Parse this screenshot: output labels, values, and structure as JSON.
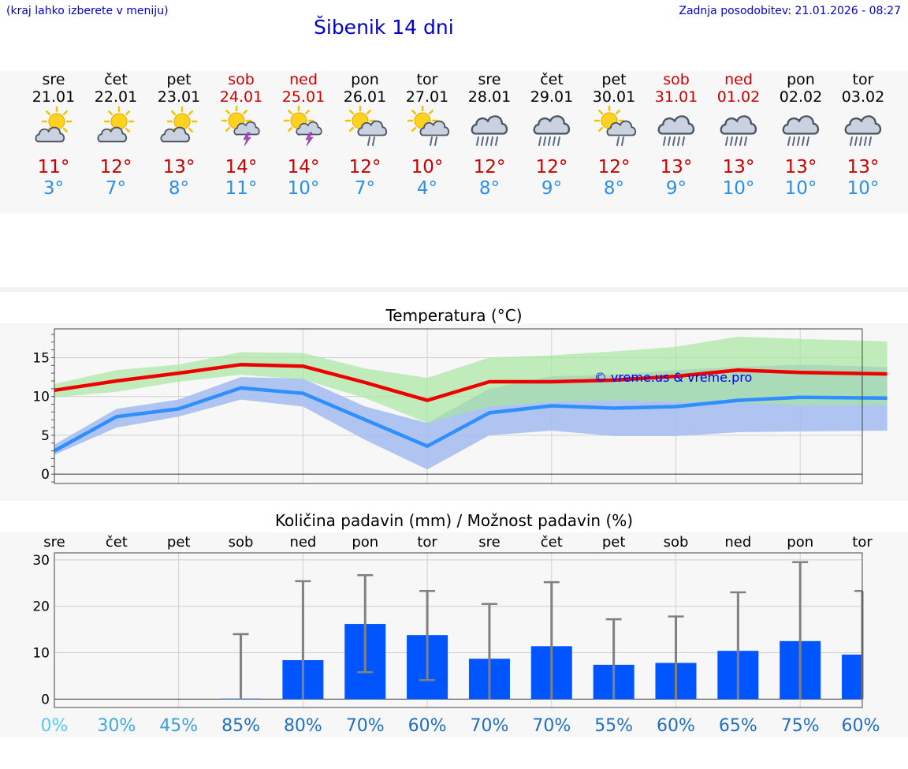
{
  "header": {
    "note": "(kraj lahko izberete v meniju)",
    "title": "Šibenik 14 dni",
    "updated": "Zadnja posodobitev: 21.01.2026 - 08:27"
  },
  "days": [
    {
      "name": "sre",
      "date": "21.01",
      "weekend": false,
      "icon": "partly-cloudy-sun-icon",
      "tmax": "11°",
      "tmin": "3°"
    },
    {
      "name": "čet",
      "date": "22.01",
      "weekend": false,
      "icon": "partly-cloudy-sun-icon",
      "tmax": "12°",
      "tmin": "7°"
    },
    {
      "name": "pet",
      "date": "23.01",
      "weekend": false,
      "icon": "partly-cloudy-sun-icon",
      "tmax": "13°",
      "tmin": "8°"
    },
    {
      "name": "sob",
      "date": "24.01",
      "weekend": true,
      "icon": "sun-thunderstorm-icon",
      "tmax": "14°",
      "tmin": "11°"
    },
    {
      "name": "ned",
      "date": "25.01",
      "weekend": true,
      "icon": "sun-thunderstorm-icon",
      "tmax": "14°",
      "tmin": "10°"
    },
    {
      "name": "pon",
      "date": "26.01",
      "weekend": false,
      "icon": "sun-rain-icon",
      "tmax": "12°",
      "tmin": "7°"
    },
    {
      "name": "tor",
      "date": "27.01",
      "weekend": false,
      "icon": "sun-rain-icon",
      "tmax": "10°",
      "tmin": "4°"
    },
    {
      "name": "sre",
      "date": "28.01",
      "weekend": false,
      "icon": "cloud-rain-icon",
      "tmax": "12°",
      "tmin": "8°"
    },
    {
      "name": "čet",
      "date": "29.01",
      "weekend": false,
      "icon": "cloud-rain-icon",
      "tmax": "12°",
      "tmin": "9°"
    },
    {
      "name": "pet",
      "date": "30.01",
      "weekend": false,
      "icon": "sun-rain-icon",
      "tmax": "12°",
      "tmin": "8°"
    },
    {
      "name": "sob",
      "date": "31.01",
      "weekend": true,
      "icon": "cloud-rain-icon",
      "tmax": "13°",
      "tmin": "9°"
    },
    {
      "name": "ned",
      "date": "01.02",
      "weekend": true,
      "icon": "cloud-rain-icon",
      "tmax": "13°",
      "tmin": "10°"
    },
    {
      "name": "pon",
      "date": "02.02",
      "weekend": false,
      "icon": "cloud-rain-icon",
      "tmax": "13°",
      "tmin": "10°"
    },
    {
      "name": "tor",
      "date": "03.02",
      "weekend": false,
      "icon": "cloud-rain-icon",
      "tmax": "13°",
      "tmin": "10°"
    }
  ],
  "colors": {
    "max_line": "#ee0000",
    "min_line": "#2f8fff",
    "max_band": "#a8e6a0",
    "min_band": "#a7bef0",
    "bar": "#0055ff",
    "whisker": "#808080",
    "weekend": "#cc0000",
    "link": "#0000cc"
  },
  "chart_data": [
    {
      "type": "line",
      "title": "Temperatura (°C)",
      "watermark": "© vreme.us & vreme.pro",
      "yticks": [
        0,
        5,
        10,
        15
      ],
      "ylim": [
        -1.2,
        18.7
      ],
      "grid": true,
      "categories": [
        "21.01",
        "22.01",
        "23.01",
        "24.01",
        "25.01",
        "26.01",
        "27.01",
        "28.01",
        "29.01",
        "30.01",
        "31.01",
        "01.02",
        "02.02",
        "03.02"
      ],
      "series": [
        {
          "name": "max",
          "x": [
            0,
            1,
            2,
            3,
            4,
            5,
            6,
            7,
            8,
            9,
            10,
            11,
            12,
            13.4
          ],
          "values": [
            10.8,
            12.0,
            13.0,
            14.1,
            13.9,
            11.8,
            9.5,
            11.9,
            11.9,
            12.1,
            12.6,
            13.4,
            13.1,
            12.9
          ]
        },
        {
          "name": "min",
          "x": [
            0,
            1,
            2,
            3,
            4,
            5,
            6,
            7,
            8,
            9,
            10,
            11,
            12,
            13.4
          ],
          "values": [
            3.0,
            7.4,
            8.4,
            11.1,
            10.4,
            7.0,
            3.6,
            7.9,
            8.8,
            8.5,
            8.7,
            9.5,
            9.9,
            9.8
          ]
        }
      ],
      "max_band": {
        "x": [
          0,
          1,
          2,
          3,
          4,
          5,
          6,
          7,
          8,
          9,
          10,
          11,
          12,
          13.4
        ],
        "upper": [
          11.6,
          13.4,
          14.1,
          15.7,
          15.6,
          13.6,
          12.4,
          15.0,
          15.3,
          15.8,
          16.4,
          17.7,
          17.4,
          17.1
        ],
        "lower": [
          9.9,
          10.6,
          11.9,
          12.8,
          12.2,
          9.8,
          6.6,
          8.7,
          9.3,
          9.5,
          9.3,
          9.2,
          8.9,
          8.9
        ]
      },
      "min_band": {
        "x": [
          0,
          1,
          2,
          3,
          4,
          5,
          6,
          7,
          8,
          9,
          10,
          11,
          12,
          13.4
        ],
        "upper": [
          3.8,
          8.4,
          9.6,
          12.5,
          12.3,
          8.7,
          6.6,
          11.0,
          12.6,
          12.8,
          13.4,
          13.8,
          14.1,
          13.8
        ],
        "lower": [
          2.5,
          6.0,
          7.4,
          9.6,
          8.7,
          4.4,
          0.6,
          5.0,
          5.6,
          4.9,
          4.9,
          5.4,
          5.5,
          5.6
        ]
      }
    },
    {
      "type": "bar",
      "title": "Količina padavin (mm) / Možnost padavin (%)",
      "yticks": [
        0,
        10,
        20,
        30
      ],
      "ylim": [
        -1.8,
        31.5
      ],
      "grid": true,
      "categories": [
        "sre",
        "čet",
        "pet",
        "sob",
        "ned",
        "pon",
        "tor",
        "sre",
        "čet",
        "pet",
        "sob",
        "ned",
        "pon",
        "tor"
      ],
      "values": [
        0,
        0,
        0,
        0.1,
        8.4,
        16.2,
        13.8,
        8.7,
        11.4,
        7.4,
        7.8,
        10.4,
        12.5,
        9.6
      ],
      "whisker_low": [
        0,
        0,
        0,
        0,
        0,
        5.8,
        4.1,
        0,
        0,
        0,
        0,
        0,
        0,
        0
      ],
      "whisker_high": [
        0,
        0,
        0,
        14.0,
        25.4,
        26.7,
        23.3,
        20.5,
        25.2,
        17.2,
        17.8,
        23.0,
        29.5,
        23.3
      ],
      "probabilities": [
        "0%",
        "30%",
        "45%",
        "85%",
        "80%",
        "70%",
        "60%",
        "70%",
        "70%",
        "55%",
        "60%",
        "65%",
        "75%",
        "60%"
      ],
      "probability_colors": [
        "#55ccee",
        "#3fa9dd",
        "#3fa0d8",
        "#1f6fc0",
        "#1f6fc0",
        "#1f6fc0",
        "#1f6fc0",
        "#1f6fc0",
        "#1f6fc0",
        "#1f6fc0",
        "#1f6fc0",
        "#1f6fc0",
        "#1f6fc0",
        "#1f6fc0"
      ]
    }
  ]
}
